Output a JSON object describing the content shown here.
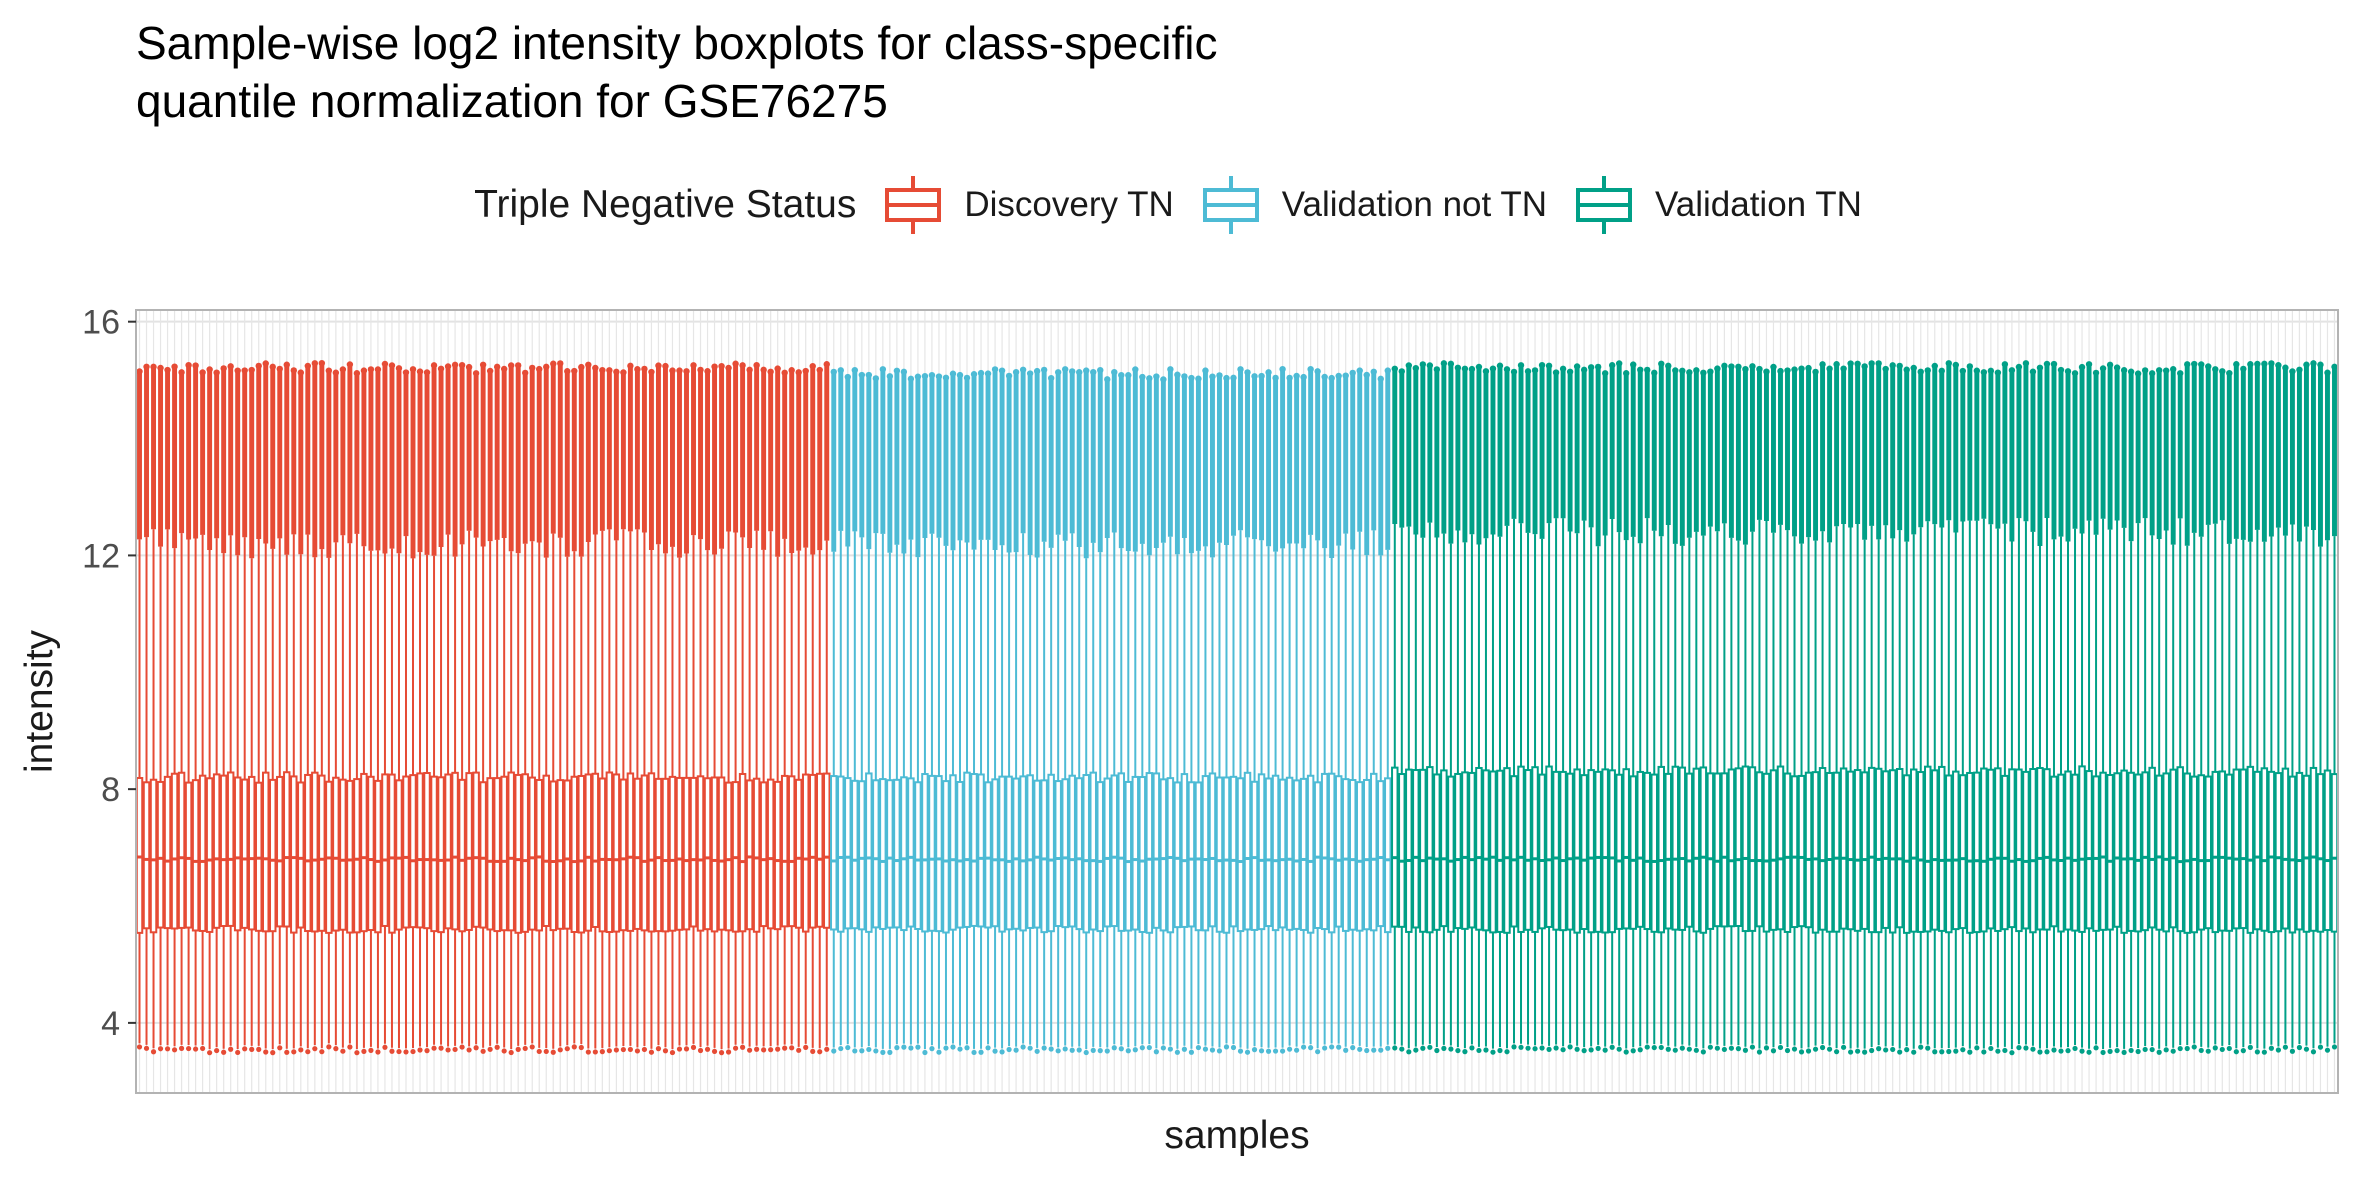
{
  "chart_data": {
    "type": "boxplot",
    "title": "Sample-wise log2 intensity boxplots for class-specific quantile normalization for GSE76275",
    "title_lines": [
      "Sample-wise log2 intensity boxplots for class-specific",
      "quantile normalization for GSE76275"
    ],
    "xlabel": "samples",
    "ylabel": "intensity",
    "ylim": [
      2.8,
      16.2
    ],
    "yticks": [
      4,
      8,
      12,
      16
    ],
    "x_tick_labels_shown": false,
    "grid": true,
    "legend": {
      "title": "Triple Negative Status",
      "placement": "top"
    },
    "series": [
      {
        "name": "Discovery TN",
        "color": "#E64B35",
        "n_samples": 99,
        "q1": 5.6,
        "median": 6.8,
        "q3": 8.2,
        "lower_whisker": 3.6,
        "upper_whisker": 12.2,
        "outlier_max": 15.2,
        "outlier_min": 12.2
      },
      {
        "name": "Validation not TN",
        "color": "#4DBBD5",
        "n_samples": 80,
        "q1": 5.6,
        "median": 6.8,
        "q3": 8.2,
        "lower_whisker": 3.6,
        "upper_whisker": 12.2,
        "outlier_max": 15.1,
        "outlier_min": 12.2
      },
      {
        "name": "Validation TN",
        "color": "#00A087",
        "n_samples": 135,
        "q1": 5.6,
        "median": 6.8,
        "q3": 8.3,
        "lower_whisker": 3.6,
        "upper_whisker": 12.4,
        "outlier_max": 15.2,
        "outlier_min": 12.4
      }
    ]
  }
}
